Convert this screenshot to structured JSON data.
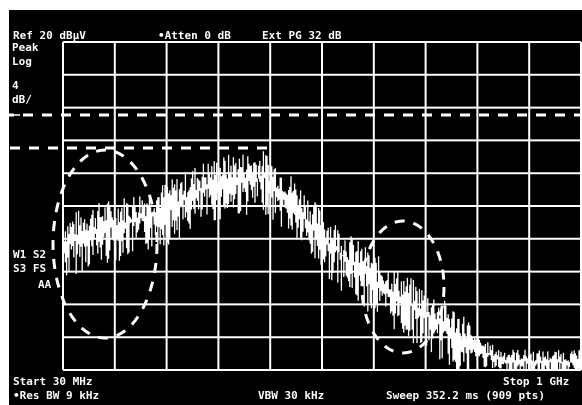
{
  "header": {
    "ref_level": "Ref 20 dBµV",
    "attenuation": "•Atten 0 dB",
    "ext_pg": "Ext PG 32 dB"
  },
  "left_panel": {
    "detector": "Peak",
    "scale_type": "Log",
    "scale_value": "4",
    "scale_unit": "dB/",
    "trace_row_1": "W1 S2",
    "trace_row_2": "S3 FS",
    "trace_row_3": "AA"
  },
  "footer": {
    "start_freq": "Start 30 MHz",
    "stop_freq": "Stop 1 GHz",
    "res_bw": "•Res BW 9 kHz",
    "vbw": "VBW 30 kHz",
    "sweep": "Sweep 352.2 ms (909 pts)"
  },
  "colors": {
    "background": "#000000",
    "foreground": "#ffffff"
  }
}
